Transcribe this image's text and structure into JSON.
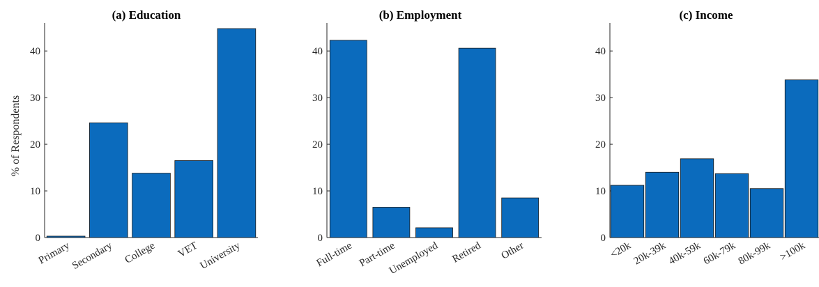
{
  "chart_data": [
    {
      "type": "bar",
      "title": "(a) Education",
      "ylabel": "% of Respondents",
      "ylim": [
        0,
        46
      ],
      "yticks": [
        0,
        10,
        20,
        30,
        40
      ],
      "categories": [
        "Primary",
        "Secondary",
        "College",
        "VET",
        "University"
      ],
      "values": [
        0.3,
        24.6,
        13.8,
        16.5,
        44.8
      ],
      "color": "#0b6bbd"
    },
    {
      "type": "bar",
      "title": "(b) Employment",
      "ylabel": "",
      "ylim": [
        0,
        46
      ],
      "yticks": [
        0,
        10,
        20,
        30,
        40
      ],
      "categories": [
        "Full-time",
        "Part-time",
        "Unemployed",
        "Retired",
        "Other"
      ],
      "values": [
        42.3,
        6.5,
        2.1,
        40.6,
        8.5
      ],
      "color": "#0b6bbd"
    },
    {
      "type": "bar",
      "title": "(c) Income",
      "ylabel": "",
      "ylim": [
        0,
        46
      ],
      "yticks": [
        0,
        10,
        20,
        30,
        40
      ],
      "categories": [
        "<20k",
        "20k-39k",
        "40k-59k",
        "60k-79k",
        "80k-99k",
        ">100k"
      ],
      "values": [
        11.2,
        14.0,
        16.9,
        13.7,
        10.5,
        33.8
      ],
      "color": "#0b6bbd"
    }
  ]
}
